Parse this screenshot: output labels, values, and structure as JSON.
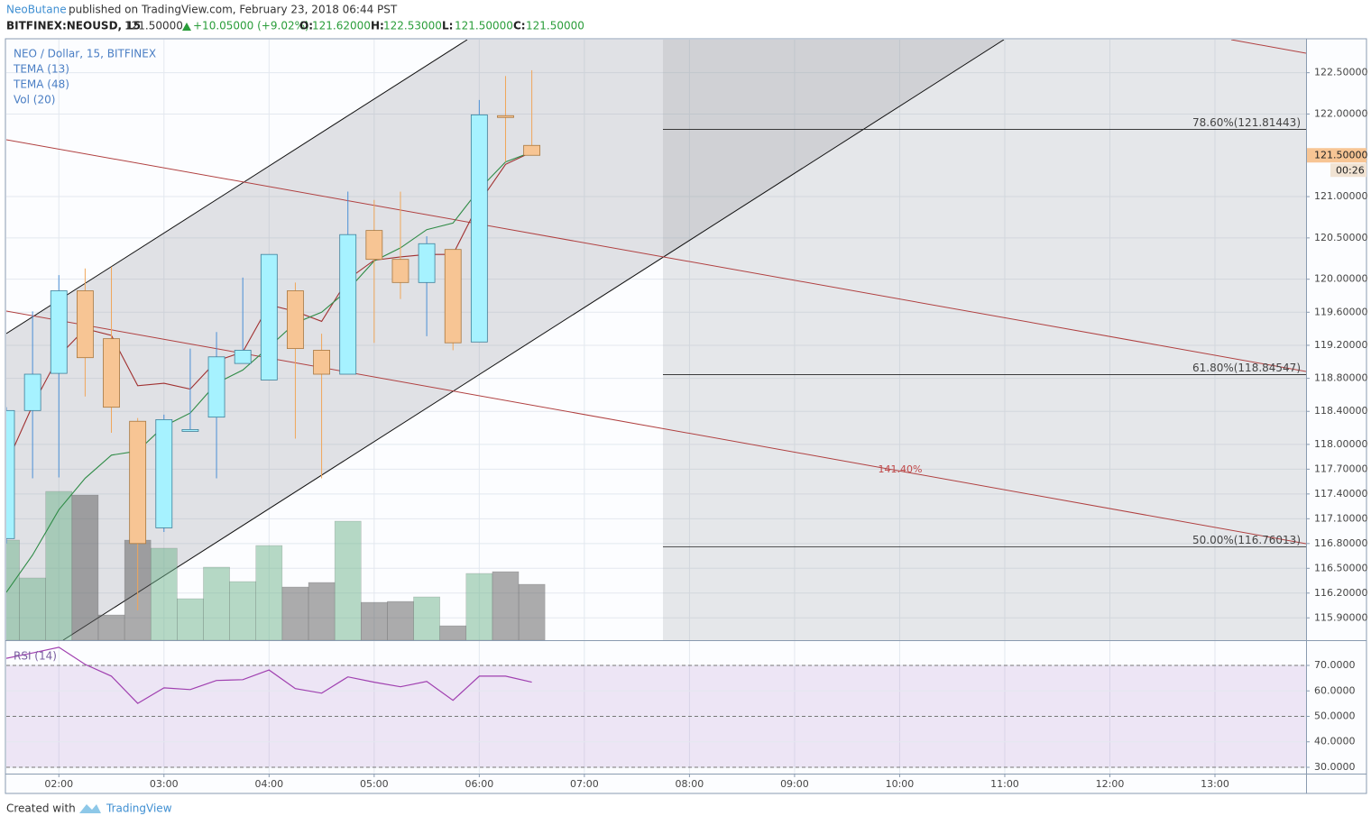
{
  "header": {
    "author": "NeoButane",
    "published": "published on TradingView.com, February 23, 2018 06:44 PST",
    "symbol": "BITFINEX:NEOUSD, 15",
    "last": "121.50000",
    "change": "+10.05000 (+9.02%)",
    "ohlc": [
      {
        "label": "O:",
        "value": "121.62000"
      },
      {
        "label": "H:",
        "value": "122.53000"
      },
      {
        "label": "L:",
        "value": "121.50000"
      },
      {
        "label": "C:",
        "value": "121.50000"
      }
    ]
  },
  "chart_data": {
    "type": "candlestick",
    "title": "NEO / Dollar, 15, BITFINEX",
    "x": [
      "01:30",
      "01:45",
      "02:00",
      "02:15",
      "02:30",
      "02:45",
      "03:00",
      "03:15",
      "03:30",
      "03:45",
      "04:00",
      "04:15",
      "04:30",
      "04:45",
      "05:00",
      "05:15",
      "05:30",
      "05:45",
      "06:00",
      "06:15",
      "06:30"
    ],
    "open": [
      116.86,
      118.41,
      118.86,
      119.86,
      119.28,
      118.28,
      116.99,
      118.17,
      118.33,
      118.98,
      118.78,
      119.86,
      119.14,
      118.85,
      120.59,
      120.24,
      119.96,
      120.36,
      119.24,
      121.98,
      121.62
    ],
    "high": [
      118.45,
      119.61,
      120.05,
      120.13,
      120.15,
      118.32,
      118.36,
      119.16,
      119.36,
      120.02,
      120.3,
      119.96,
      119.34,
      121.06,
      120.96,
      121.06,
      120.52,
      120.36,
      122.17,
      122.46,
      122.53
    ],
    "low": [
      116.8,
      117.59,
      117.6,
      118.58,
      118.14,
      115.99,
      116.94,
      118.16,
      117.59,
      118.98,
      118.78,
      118.07,
      117.59,
      118.85,
      119.23,
      119.76,
      119.31,
      119.14,
      119.24,
      121.42,
      121.5
    ],
    "close": [
      118.41,
      118.85,
      119.86,
      119.05,
      118.45,
      116.8,
      118.3,
      118.18,
      119.06,
      119.14,
      120.3,
      119.16,
      118.85,
      120.54,
      120.24,
      119.96,
      120.43,
      119.23,
      121.99,
      121.96,
      121.5
    ],
    "up_color": "#a6f2ff",
    "down_color": "#f7c594",
    "up_wick": "#4a8fd6",
    "down_wick": "#f0a65a",
    "series": [
      {
        "name": "TEMA (13)",
        "color": "#a03030",
        "values": [
          117.76,
          118.47,
          119.07,
          119.4,
          119.32,
          118.71,
          118.74,
          118.67,
          119.01,
          119.12,
          119.69,
          119.61,
          119.49,
          120.0,
          120.23,
          120.27,
          120.3,
          120.3,
          120.93,
          121.39,
          121.54
        ]
      },
      {
        "name": "TEMA (48)",
        "color": "#2e8b46",
        "values": [
          116.21,
          116.66,
          117.21,
          117.59,
          117.87,
          117.92,
          118.22,
          118.38,
          118.74,
          118.9,
          119.18,
          119.47,
          119.6,
          119.87,
          120.22,
          120.38,
          120.6,
          120.68,
          121.09,
          121.42,
          121.54
        ]
      }
    ],
    "volume_name": "Vol (20)",
    "volume": [
      111,
      69,
      165,
      161,
      28,
      111,
      102,
      46,
      81,
      65,
      105,
      59,
      64,
      132,
      42,
      43,
      48,
      16,
      74,
      76,
      62
    ],
    "volume_lim": [
      0,
      666
    ],
    "volume_up_color": "rgba(110,180,140,0.5)",
    "volume_down_color": "rgba(90,90,90,0.5)",
    "xlim": [
      "01:30",
      "13:52"
    ],
    "xticks": [
      "02:00",
      "03:00",
      "04:00",
      "05:00",
      "06:00",
      "07:00",
      "08:00",
      "09:00",
      "10:00",
      "11:00",
      "12:00",
      "13:00"
    ],
    "ylim": [
      115.63,
      122.9
    ],
    "yticks": [
      {
        "value": 122.5,
        "label": "122.50000"
      },
      {
        "value": 122,
        "label": "122.00000"
      },
      {
        "value": 121,
        "label": "121.00000"
      },
      {
        "value": 120.5,
        "label": "120.50000"
      },
      {
        "value": 120,
        "label": "120.00000"
      },
      {
        "value": 119.6,
        "label": "119.60000"
      },
      {
        "value": 119.2,
        "label": "119.20000"
      },
      {
        "value": 118.8,
        "label": "118.80000"
      },
      {
        "value": 118.4,
        "label": "118.40000"
      },
      {
        "value": 118,
        "label": "118.00000"
      },
      {
        "value": 117.7,
        "label": "117.70000"
      },
      {
        "value": 117.4,
        "label": "117.40000"
      },
      {
        "value": 117.1,
        "label": "117.10000"
      },
      {
        "value": 116.8,
        "label": "116.80000"
      },
      {
        "value": 116.5,
        "label": "116.50000"
      },
      {
        "value": 116.2,
        "label": "116.20000"
      },
      {
        "value": 115.9,
        "label": "115.90000"
      }
    ],
    "grid": true,
    "fib_levels": [
      {
        "value": 121.81443,
        "label": "78.60%(121.81443)"
      },
      {
        "value": 118.84547,
        "label": "61.80%(118.84547)"
      },
      {
        "value": 116.76013,
        "label": "50.00%(116.76013)"
      }
    ],
    "annotation": "141.40%",
    "price_marker": {
      "value": 121.5,
      "label": "121.50000"
    },
    "countdown": "00:26",
    "rsi": {
      "name": "RSI (14)",
      "color": "#a040b0",
      "values": [
        72.8,
        74.9,
        77.1,
        70.4,
        65.8,
        55.1,
        61.2,
        60.5,
        64.1,
        64.4,
        68.2,
        60.9,
        59.1,
        65.5,
        63.4,
        61.6,
        63.7,
        56.3,
        65.8,
        65.8,
        63.4
      ],
      "ylim": [
        27.52,
        79.56
      ],
      "yticks": [
        {
          "value": 70,
          "label": "70.0000"
        },
        {
          "value": 60,
          "label": "60.0000"
        },
        {
          "value": 50,
          "label": "50.0000"
        },
        {
          "value": 40,
          "label": "40.0000"
        },
        {
          "value": 30,
          "label": "30.0000"
        }
      ],
      "band": [
        30,
        70
      ],
      "dashed_levels": [
        70,
        50,
        30
      ]
    }
  },
  "footer": {
    "created": "Created with",
    "brand": "TradingView"
  }
}
